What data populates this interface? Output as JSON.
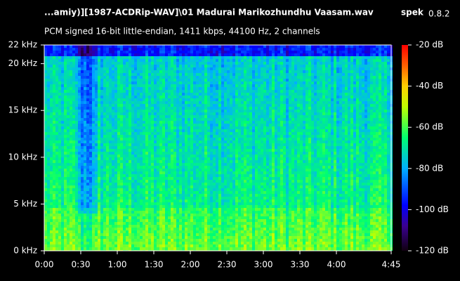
{
  "chart_data": {
    "type": "spectrogram",
    "title": "...amiy)][1987-ACDRip-WAV]\\01 Madurai Marikozhundhu Vaasam.wav",
    "app_name": "spek",
    "app_version": "0.8.2",
    "subtitle": "PCM signed 16-bit little-endian, 1411 kbps, 44100 Hz, 2 channels",
    "xlim": [
      0,
      285
    ],
    "xticks": [
      {
        "value": 0,
        "label": "0:00"
      },
      {
        "value": 30,
        "label": "0:30"
      },
      {
        "value": 60,
        "label": "1:00"
      },
      {
        "value": 90,
        "label": "1:30"
      },
      {
        "value": 120,
        "label": "2:00"
      },
      {
        "value": 150,
        "label": "2:30"
      },
      {
        "value": 180,
        "label": "3:00"
      },
      {
        "value": 210,
        "label": "3:30"
      },
      {
        "value": 240,
        "label": "4:00"
      },
      {
        "value": 285,
        "label": "4:45"
      }
    ],
    "ylim": [
      0,
      22
    ],
    "yticks": [
      {
        "value": 0,
        "label": "0 kHz"
      },
      {
        "value": 5,
        "label": "5 kHz"
      },
      {
        "value": 10,
        "label": "10 kHz"
      },
      {
        "value": 15,
        "label": "15 kHz"
      },
      {
        "value": 20,
        "label": "20 kHz"
      },
      {
        "value": 22,
        "label": "22 kHz"
      }
    ],
    "zlim": [
      -120,
      -20
    ],
    "zticks": [
      {
        "value": -20,
        "label": "-20 dB"
      },
      {
        "value": -40,
        "label": "-40 dB"
      },
      {
        "value": -60,
        "label": "-60 dB"
      },
      {
        "value": -80,
        "label": "-80 dB"
      },
      {
        "value": -100,
        "label": "-100 dB"
      },
      {
        "value": -120,
        "label": "-120 dB"
      }
    ]
  }
}
